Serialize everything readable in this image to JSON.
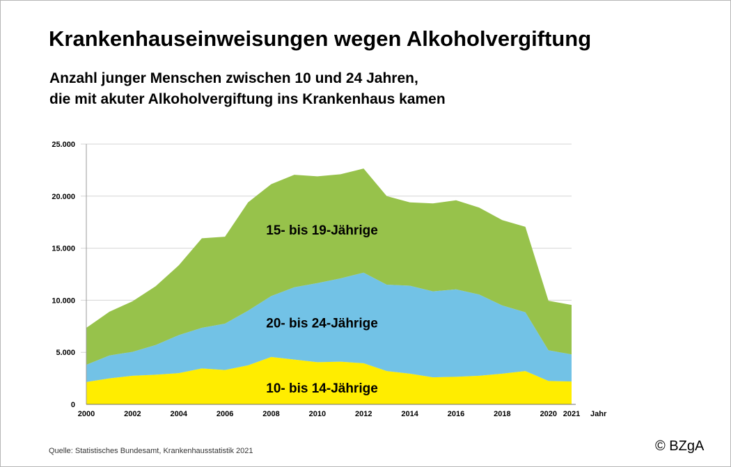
{
  "header": {
    "title": "Krankenhauseinweisungen wegen Alkoholvergiftung",
    "subtitle_line1": "Anzahl junger Menschen zwischen 10 und 24 Jahren,",
    "subtitle_line2": "die mit akuter Alkoholvergiftung ins Krankenhaus kamen"
  },
  "footer": {
    "source": "Quelle: Statistisches Bundesamt, Krankenhausstatistik 2021",
    "copyright": "© BZgA"
  },
  "chart_data": {
    "type": "area",
    "stacked": true,
    "x": [
      2000,
      2001,
      2002,
      2003,
      2004,
      2005,
      2006,
      2007,
      2008,
      2009,
      2010,
      2011,
      2012,
      2013,
      2014,
      2015,
      2016,
      2017,
      2018,
      2019,
      2020,
      2021
    ],
    "x_tick_labels": [
      "2000",
      "2002",
      "2004",
      "2006",
      "2008",
      "2010",
      "2012",
      "2014",
      "2016",
      "2018",
      "2020",
      "2021"
    ],
    "xlabel": "Jahr",
    "y_tick_labels": [
      "0",
      "5.000",
      "10.000",
      "15.000",
      "20.000",
      "25.000"
    ],
    "y_ticks": [
      0,
      5000,
      10000,
      15000,
      20000,
      25000
    ],
    "ylim": [
      0,
      25000
    ],
    "grid": true,
    "series": [
      {
        "name": "10- bis 14-Jährige",
        "color": "#ffed00",
        "values": [
          2150,
          2500,
          2750,
          2850,
          3000,
          3450,
          3300,
          3750,
          4550,
          4300,
          4050,
          4100,
          3950,
          3200,
          2950,
          2600,
          2650,
          2750,
          2950,
          3200,
          2250,
          2200
        ]
      },
      {
        "name": "20- bis 24-Jährige",
        "color": "#72c2e6",
        "values": [
          1650,
          2200,
          2300,
          2850,
          3650,
          3900,
          4450,
          5250,
          5850,
          6950,
          7600,
          8000,
          8700,
          8300,
          8450,
          8250,
          8400,
          7800,
          6550,
          5650,
          2950,
          2600
        ]
      },
      {
        "name": "15- bis 19-Jährige",
        "color": "#97c24b",
        "values": [
          3550,
          4200,
          4850,
          5650,
          6700,
          8600,
          8350,
          10400,
          10750,
          10800,
          10250,
          10000,
          10000,
          8500,
          8000,
          8450,
          8550,
          8350,
          8200,
          8200,
          4750,
          4750
        ]
      }
    ]
  }
}
